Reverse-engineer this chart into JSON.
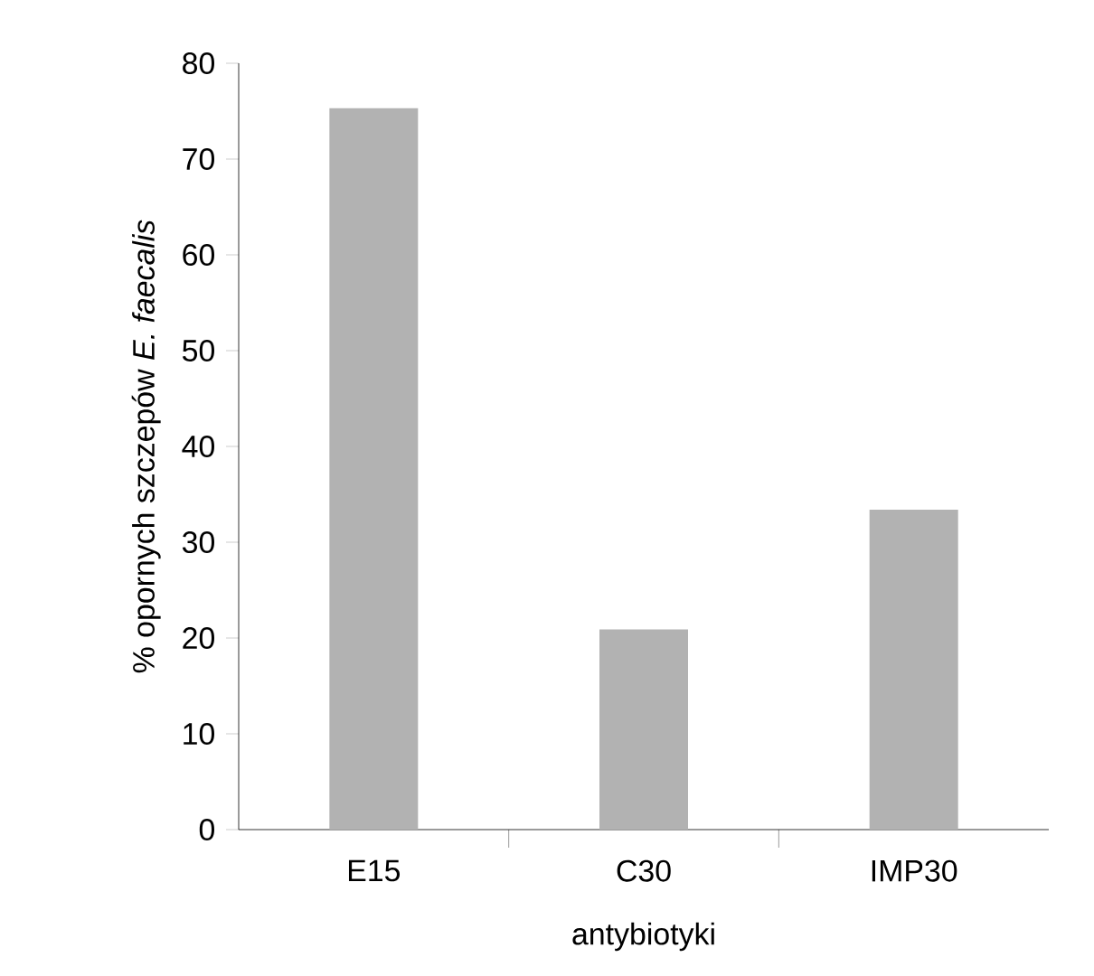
{
  "chart_data": {
    "type": "bar",
    "categories": [
      "E15",
      "C30",
      "IMP30"
    ],
    "values": [
      75.3,
      20.9,
      33.4
    ],
    "color": "#b2b2b2",
    "xlabel": "antybiotyki",
    "ylabel": "% opornych szczepów *E. faecalis*",
    "ylim": [
      0,
      80
    ],
    "yticks": [
      0,
      10,
      20,
      30,
      40,
      50,
      60,
      70,
      80
    ]
  }
}
